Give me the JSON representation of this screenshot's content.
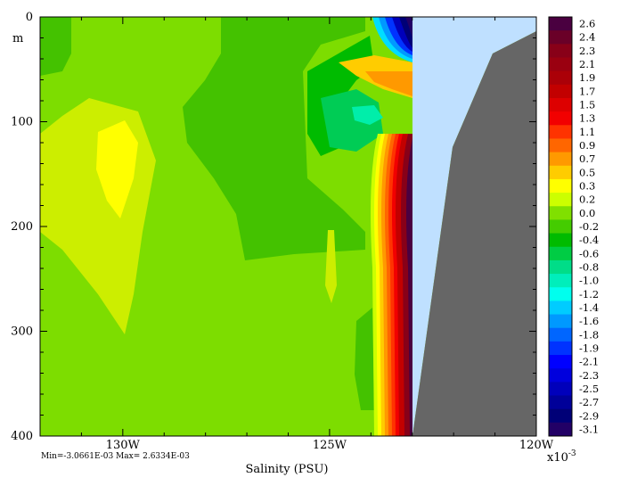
{
  "chart_data": {
    "type": "heatmap",
    "title": "",
    "xlabel": "Salinity (PSU)",
    "ylabel": "m",
    "xlim": [
      -132,
      -120
    ],
    "ylim": [
      400,
      0
    ],
    "x_ticks": [
      {
        "value": -130,
        "label": "130W"
      },
      {
        "value": -125,
        "label": "125W"
      },
      {
        "value": -120,
        "label": "120W"
      }
    ],
    "y_ticks": [
      {
        "value": 0,
        "label": "0"
      },
      {
        "value": 100,
        "label": "100"
      },
      {
        "value": 200,
        "label": "200"
      },
      {
        "value": 300,
        "label": "300"
      },
      {
        "value": 400,
        "label": "400"
      }
    ],
    "stats_text": "Min=-3.0661E-03   Max= 2.6334E-03",
    "colorbar": {
      "scale_label": "x10",
      "scale_exponent": "-3",
      "levels": [
        "2.6",
        "2.4",
        "2.3",
        "2.1",
        "1.9",
        "1.7",
        "1.5",
        "1.3",
        "1.1",
        "0.9",
        "0.7",
        "0.5",
        "0.3",
        "0.2",
        "0.0",
        "-0.2",
        "-0.4",
        "-0.6",
        "-0.8",
        "-1.0",
        "-1.2",
        "-1.4",
        "-1.6",
        "-1.8",
        "-1.9",
        "-2.1",
        "-2.3",
        "-2.5",
        "-2.7",
        "-2.9",
        "-3.1"
      ],
      "colors": [
        "#4a0040",
        "#6a0028",
        "#880018",
        "#9a0010",
        "#ab0008",
        "#c20000",
        "#dd0000",
        "#f20000",
        "#ff3300",
        "#ff6600",
        "#ff9900",
        "#ffcc00",
        "#ffff00",
        "#ccff00",
        "#80e000",
        "#44cc00",
        "#00bb00",
        "#00cc44",
        "#00dd88",
        "#00eebb",
        "#00ffee",
        "#00ccff",
        "#0099ff",
        "#0066ff",
        "#0033ff",
        "#0000ff",
        "#0000dd",
        "#0000bb",
        "#000099",
        "#000077",
        "#220066"
      ]
    },
    "colors": {
      "land": "#666666",
      "missing": "#bfe0ff",
      "background": "#7fdd00"
    }
  }
}
